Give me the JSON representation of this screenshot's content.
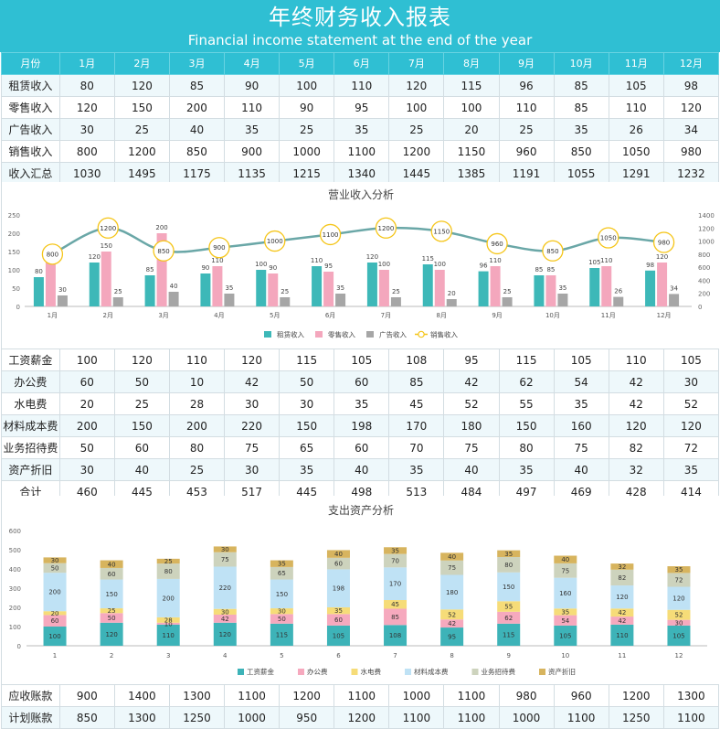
{
  "header": {
    "title": "年终财务收入报表",
    "subtitle": "Financial income statement at the end of the year"
  },
  "income_table": {
    "header_label": "月份",
    "months": [
      "1月",
      "2月",
      "3月",
      "4月",
      "5月",
      "6月",
      "7月",
      "8月",
      "9月",
      "10月",
      "11月",
      "12月"
    ],
    "rows": [
      {
        "label": "租赁收入",
        "values": [
          80,
          120,
          85,
          90,
          100,
          110,
          120,
          115,
          96,
          85,
          105,
          98
        ]
      },
      {
        "label": "零售收入",
        "values": [
          120,
          150,
          200,
          110,
          90,
          95,
          100,
          100,
          110,
          85,
          110,
          120
        ]
      },
      {
        "label": "广告收入",
        "values": [
          30,
          25,
          40,
          35,
          25,
          35,
          25,
          20,
          25,
          35,
          26,
          34
        ]
      },
      {
        "label": "销售收入",
        "values": [
          800,
          1200,
          850,
          900,
          1000,
          1100,
          1200,
          1150,
          960,
          850,
          1050,
          980
        ]
      },
      {
        "label": "收入汇总",
        "values": [
          1030,
          1495,
          1175,
          1135,
          1215,
          1340,
          1445,
          1385,
          1191,
          1055,
          1291,
          1232
        ]
      }
    ]
  },
  "expense_table": {
    "rows": [
      {
        "label": "工资薪金",
        "values": [
          100,
          120,
          110,
          120,
          115,
          105,
          108,
          95,
          115,
          105,
          110,
          105
        ]
      },
      {
        "label": "办公费",
        "values": [
          60,
          50,
          10,
          42,
          50,
          60,
          85,
          42,
          62,
          54,
          42,
          30
        ]
      },
      {
        "label": "水电费",
        "values": [
          20,
          25,
          28,
          30,
          30,
          35,
          45,
          52,
          55,
          35,
          42,
          52
        ]
      },
      {
        "label": "材料成本费",
        "values": [
          200,
          150,
          200,
          220,
          150,
          198,
          170,
          180,
          150,
          160,
          120,
          120
        ]
      },
      {
        "label": "业务招待费",
        "values": [
          50,
          60,
          80,
          75,
          65,
          60,
          70,
          75,
          80,
          75,
          82,
          72
        ]
      },
      {
        "label": "资产折旧",
        "values": [
          30,
          40,
          25,
          30,
          35,
          40,
          35,
          40,
          35,
          40,
          32,
          35
        ]
      },
      {
        "label": "合计",
        "values": [
          460,
          445,
          453,
          517,
          445,
          498,
          513,
          484,
          497,
          469,
          428,
          414
        ]
      }
    ]
  },
  "receivable_table": {
    "rows": [
      {
        "label": "应收账款",
        "values": [
          900,
          1400,
          1300,
          1100,
          1200,
          1100,
          1000,
          1100,
          980,
          960,
          1200,
          1300
        ]
      },
      {
        "label": "计划账款",
        "values": [
          850,
          1300,
          1250,
          1000,
          950,
          1200,
          1100,
          1100,
          1000,
          1100,
          1250,
          1100
        ]
      }
    ]
  },
  "chart_data": [
    {
      "type": "bar",
      "title": "营业收入分析",
      "categories": [
        "1月",
        "2月",
        "3月",
        "4月",
        "5月",
        "6月",
        "7月",
        "8月",
        "9月",
        "10月",
        "11月",
        "12月"
      ],
      "series": [
        {
          "name": "租赁收入",
          "type": "bar",
          "color": "#3db8b8",
          "values": [
            80,
            120,
            85,
            90,
            100,
            110,
            120,
            115,
            96,
            85,
            105,
            98
          ]
        },
        {
          "name": "零售收入",
          "type": "bar",
          "color": "#f4a7bd",
          "values": [
            120,
            150,
            200,
            110,
            90,
            95,
            100,
            100,
            110,
            85,
            110,
            120
          ]
        },
        {
          "name": "广告收入",
          "type": "bar",
          "color": "#a6a6a6",
          "values": [
            30,
            25,
            40,
            35,
            25,
            35,
            25,
            20,
            25,
            35,
            26,
            34
          ]
        },
        {
          "name": "销售收入",
          "type": "line",
          "axis": "right",
          "color": "#6aa7a7",
          "marker_color": "#f5c518",
          "values": [
            800,
            1200,
            850,
            900,
            1000,
            1100,
            1200,
            1150,
            960,
            850,
            1050,
            980
          ]
        }
      ],
      "ylim_left": [
        0,
        250
      ],
      "yticks_left": [
        0,
        50,
        100,
        150,
        200,
        250
      ],
      "ylim_right": [
        0,
        1400
      ],
      "yticks_right": [
        0,
        200,
        400,
        600,
        800,
        1000,
        1200,
        1400
      ],
      "legend": "bottom",
      "grid": false
    },
    {
      "type": "stacked-bar",
      "title": "支出资产分析",
      "categories": [
        "1",
        "2",
        "3",
        "4",
        "5",
        "6",
        "7",
        "8",
        "9",
        "10",
        "11",
        "12"
      ],
      "series": [
        {
          "name": "工资薪金",
          "color": "#3db3b8",
          "values": [
            100,
            120,
            110,
            120,
            115,
            105,
            108,
            95,
            115,
            105,
            110,
            105
          ]
        },
        {
          "name": "办公费",
          "color": "#f6a9be",
          "values": [
            60,
            50,
            10,
            42,
            50,
            60,
            85,
            42,
            62,
            54,
            42,
            30
          ]
        },
        {
          "name": "水电费",
          "color": "#f6dc78",
          "values": [
            20,
            25,
            28,
            30,
            30,
            35,
            45,
            52,
            55,
            35,
            42,
            52
          ]
        },
        {
          "name": "材料成本费",
          "color": "#bfe2f5",
          "values": [
            200,
            150,
            200,
            220,
            150,
            198,
            170,
            180,
            150,
            160,
            120,
            120
          ]
        },
        {
          "name": "业务招待费",
          "color": "#cdd3bd",
          "values": [
            50,
            60,
            80,
            75,
            65,
            60,
            70,
            75,
            80,
            75,
            82,
            72
          ]
        },
        {
          "name": "资产折旧",
          "color": "#d7b45e",
          "values": [
            30,
            40,
            25,
            30,
            35,
            40,
            35,
            40,
            35,
            40,
            32,
            35
          ]
        }
      ],
      "ylim": [
        0,
        600
      ],
      "yticks": [
        0,
        100,
        200,
        300,
        400,
        500,
        600
      ],
      "legend": "bottom",
      "grid": false
    }
  ]
}
